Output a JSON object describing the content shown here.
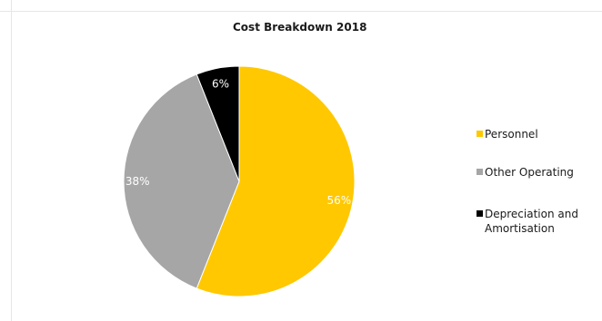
{
  "chart_data": {
    "type": "pie",
    "title": "Cost Breakdown 2018",
    "slices": [
      {
        "label": "Personnel",
        "value": 56,
        "value_label": "56%",
        "color": "#FFC800"
      },
      {
        "label": "Other Operating",
        "value": 38,
        "value_label": "38%",
        "color": "#A6A6A6"
      },
      {
        "label": "Depreciation and Amortisation",
        "value": 6,
        "value_label": "6%",
        "color": "#000000"
      }
    ],
    "legend": {
      "position": "right",
      "entries": [
        {
          "line1": "Personnel",
          "line2": ""
        },
        {
          "line1": "Other Operating",
          "line2": ""
        },
        {
          "line1": "Depreciation and",
          "line2": "Amortisation"
        }
      ]
    }
  }
}
